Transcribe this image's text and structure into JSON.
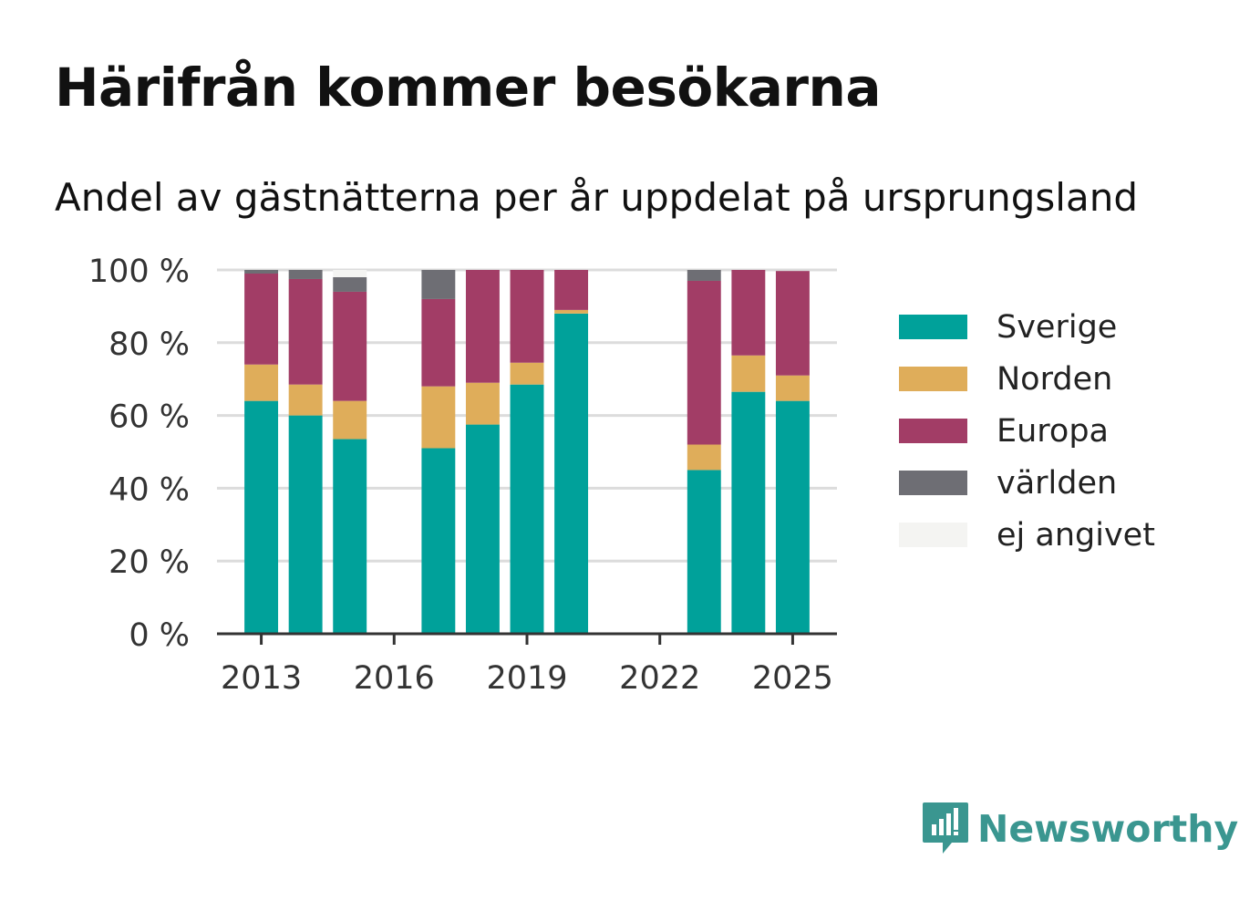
{
  "title": "Härifrån kommer besökarna",
  "subtitle": "Andel av gästnätterna per år uppdelat på ursprungsland",
  "brand": {
    "name": "Newsworthy",
    "icon": "bar-chart-speech-bubble-icon",
    "color": "#3a9690"
  },
  "chart_data": {
    "type": "bar",
    "stacked": true,
    "categories": [
      2013,
      2014,
      2015,
      2017,
      2018,
      2019,
      2020,
      2023,
      2024,
      2025
    ],
    "series": [
      {
        "name": "Sverige",
        "color": "#00a19a",
        "values": [
          64,
          60,
          53.5,
          51,
          57.5,
          68.5,
          88,
          45,
          66.5,
          64
        ]
      },
      {
        "name": "Norden",
        "color": "#dfad5a",
        "values": [
          10,
          8.5,
          10.5,
          17,
          11.5,
          6,
          1,
          7,
          10,
          7
        ]
      },
      {
        "name": "Europa",
        "color": "#a23d66",
        "values": [
          25,
          29,
          30,
          24,
          31,
          25.5,
          11,
          45,
          23.5,
          28.7
        ]
      },
      {
        "name": "världen",
        "color": "#6e6e74",
        "values": [
          1,
          2.5,
          4,
          8,
          0,
          0,
          0,
          3,
          0,
          0
        ]
      },
      {
        "name": "ej angivet",
        "color": "#f4f4f2",
        "values": [
          0,
          0,
          2,
          0,
          0,
          0,
          0,
          0,
          0,
          0
        ]
      }
    ],
    "x_ticks": [
      "2013",
      "2016",
      "2019",
      "2022",
      "2025"
    ],
    "y_ticks": [
      "0 %",
      "20 %",
      "40 %",
      "60 %",
      "80 %",
      "100 %"
    ],
    "xlim": [
      2012,
      2026
    ],
    "ylim": [
      0,
      100
    ],
    "grid": true,
    "legend_position": "right",
    "xlabel": "",
    "ylabel": ""
  }
}
